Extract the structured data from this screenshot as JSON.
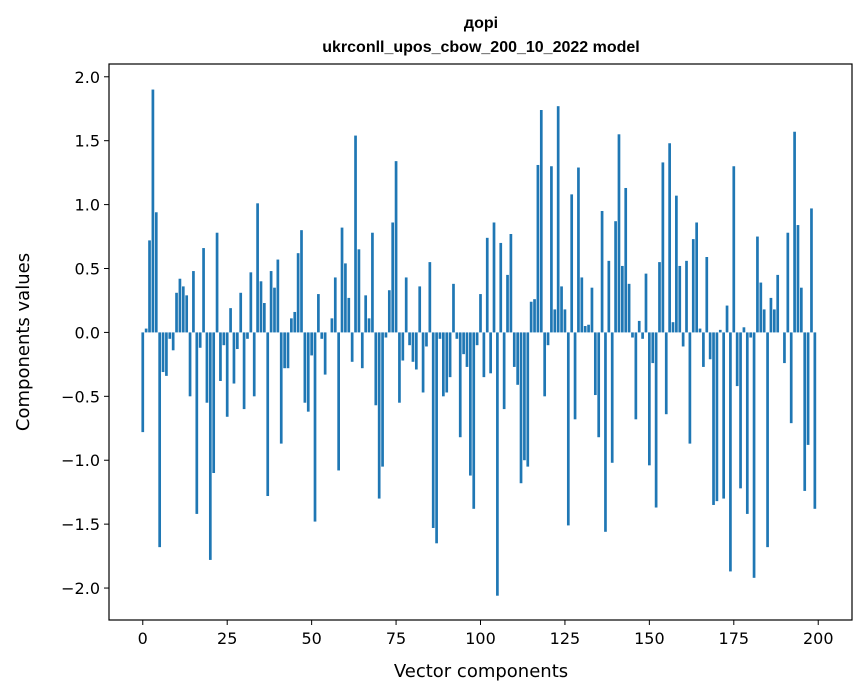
{
  "chart_data": {
    "type": "bar",
    "title_line1": "дорі",
    "title_line2": "ukrconll_upos_cbow_200_10_2022 model",
    "xlabel": "Vector components",
    "ylabel": "Components values",
    "xlim": [
      -10,
      210
    ],
    "ylim": [
      -2.25,
      2.1
    ],
    "xticks": [
      0,
      25,
      50,
      75,
      100,
      125,
      150,
      175,
      200
    ],
    "xtick_labels": [
      "0",
      "25",
      "50",
      "75",
      "100",
      "125",
      "150",
      "175",
      "200"
    ],
    "yticks": [
      2.0,
      1.5,
      1.0,
      0.5,
      0.0,
      -0.5,
      -1.0,
      -1.5,
      -2.0
    ],
    "ytick_labels": [
      "2.0",
      "1.5",
      "1.0",
      "0.5",
      "0.0",
      "−0.5",
      "−1.0",
      "−1.5",
      "−2.0"
    ],
    "bar_color": "#1f77b4",
    "grid": false,
    "values": [
      -0.78,
      0.03,
      0.72,
      1.9,
      0.94,
      -1.68,
      -0.31,
      -0.34,
      -0.05,
      -0.14,
      0.31,
      0.42,
      0.36,
      0.29,
      -0.5,
      0.48,
      -1.42,
      -0.12,
      0.66,
      -0.55,
      -1.78,
      -1.1,
      0.78,
      -0.38,
      -0.1,
      -0.66,
      0.19,
      -0.4,
      -0.13,
      0.31,
      -0.6,
      -0.05,
      0.47,
      -0.5,
      1.01,
      0.4,
      0.23,
      -1.28,
      0.48,
      0.35,
      0.57,
      -0.87,
      -0.28,
      -0.28,
      0.11,
      0.16,
      0.62,
      0.8,
      -0.55,
      -0.62,
      -0.18,
      -1.48,
      0.3,
      -0.05,
      -0.33,
      0.0,
      0.11,
      0.43,
      -1.08,
      0.82,
      0.54,
      0.27,
      -0.23,
      1.54,
      0.65,
      -0.28,
      0.29,
      0.11,
      0.78,
      -0.57,
      -1.3,
      -1.05,
      -0.04,
      0.33,
      0.86,
      1.34,
      -0.55,
      -0.22,
      0.43,
      -0.1,
      -0.23,
      -0.29,
      0.36,
      -0.47,
      -0.11,
      0.55,
      -1.53,
      -1.65,
      -0.05,
      -0.5,
      -0.47,
      -0.35,
      0.38,
      -0.05,
      -0.82,
      -0.17,
      -0.27,
      -1.12,
      -1.38,
      -0.1,
      0.3,
      -0.35,
      0.74,
      -0.32,
      0.86,
      -2.06,
      0.7,
      -0.6,
      0.45,
      0.77,
      -0.27,
      -0.41,
      -1.18,
      -1.0,
      -1.05,
      0.24,
      0.26,
      1.31,
      1.74,
      -0.5,
      -0.1,
      1.3,
      0.18,
      1.77,
      0.36,
      0.18,
      -1.51,
      1.08,
      -0.68,
      1.29,
      0.43,
      0.05,
      0.06,
      0.35,
      -0.49,
      -0.82,
      0.95,
      -1.56,
      0.56,
      -1.02,
      0.87,
      1.55,
      0.52,
      1.13,
      0.38,
      -0.04,
      -0.68,
      0.09,
      -0.05,
      0.46,
      -1.04,
      -0.24,
      -1.37,
      0.55,
      1.33,
      -0.64,
      1.48,
      0.08,
      1.07,
      0.52,
      -0.11,
      0.56,
      -0.87,
      0.73,
      0.86,
      0.03,
      -0.27,
      0.59,
      -0.21,
      -1.35,
      -1.32,
      0.02,
      -1.3,
      0.21,
      -1.87,
      1.3,
      -0.42,
      -1.22,
      0.04,
      -1.42,
      -0.04,
      -1.92,
      0.75,
      0.39,
      0.18,
      -1.68,
      0.27,
      0.18,
      0.45,
      0.0,
      -0.24,
      0.78,
      -0.71,
      1.57,
      0.84,
      0.35,
      -1.24,
      -0.88,
      0.97,
      -1.38
    ]
  }
}
